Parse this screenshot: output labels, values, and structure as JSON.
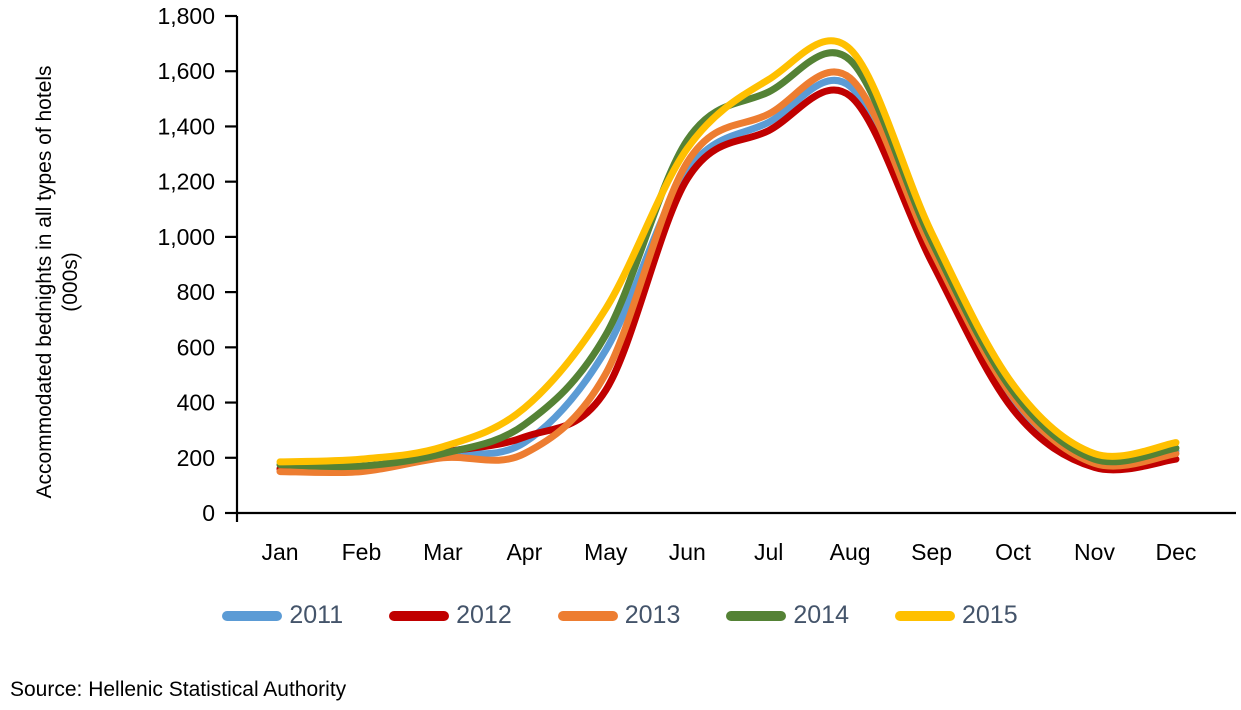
{
  "chart_data": {
    "type": "line",
    "title": "",
    "xlabel": "",
    "ylabel": "Accommodated bednights in all types of hotels (000s)",
    "x": [
      "Jan",
      "Feb",
      "Mar",
      "Apr",
      "May",
      "Jun",
      "Jul",
      "Aug",
      "Sep",
      "Oct",
      "Nov",
      "Dec"
    ],
    "ylim": [
      0,
      1800
    ],
    "ytick_step": 200,
    "ytick_labels": [
      "0",
      "200",
      "400",
      "600",
      "800",
      "1,000",
      "1,200",
      "1,400",
      "1,600",
      "1,800"
    ],
    "grid": false,
    "legend_position": "bottom",
    "line_style": "smooth",
    "series": [
      {
        "name": "2011",
        "color": "#5B9BD5",
        "values": [
          160,
          165,
          210,
          255,
          590,
          1240,
          1415,
          1545,
          930,
          410,
          185,
          225
        ]
      },
      {
        "name": "2012",
        "color": "#C00000",
        "values": [
          160,
          165,
          220,
          275,
          445,
          1210,
          1385,
          1510,
          910,
          375,
          165,
          195
        ]
      },
      {
        "name": "2013",
        "color": "#ED7D31",
        "values": [
          150,
          150,
          200,
          215,
          505,
          1270,
          1445,
          1575,
          955,
          420,
          180,
          215
        ]
      },
      {
        "name": "2014",
        "color": "#548235",
        "values": [
          175,
          170,
          215,
          320,
          645,
          1350,
          1525,
          1640,
          985,
          440,
          195,
          235
        ]
      },
      {
        "name": "2015",
        "color": "#FFC000",
        "values": [
          185,
          195,
          240,
          380,
          740,
          1320,
          1570,
          1680,
          1015,
          465,
          215,
          255
        ]
      }
    ]
  },
  "style": {
    "axis_color": "#000000",
    "tick_label_color": "#000000",
    "legend_text_color": "#44546A",
    "line_width": 7
  },
  "footer": {
    "source": "Source: Hellenic Statistical Authority"
  }
}
